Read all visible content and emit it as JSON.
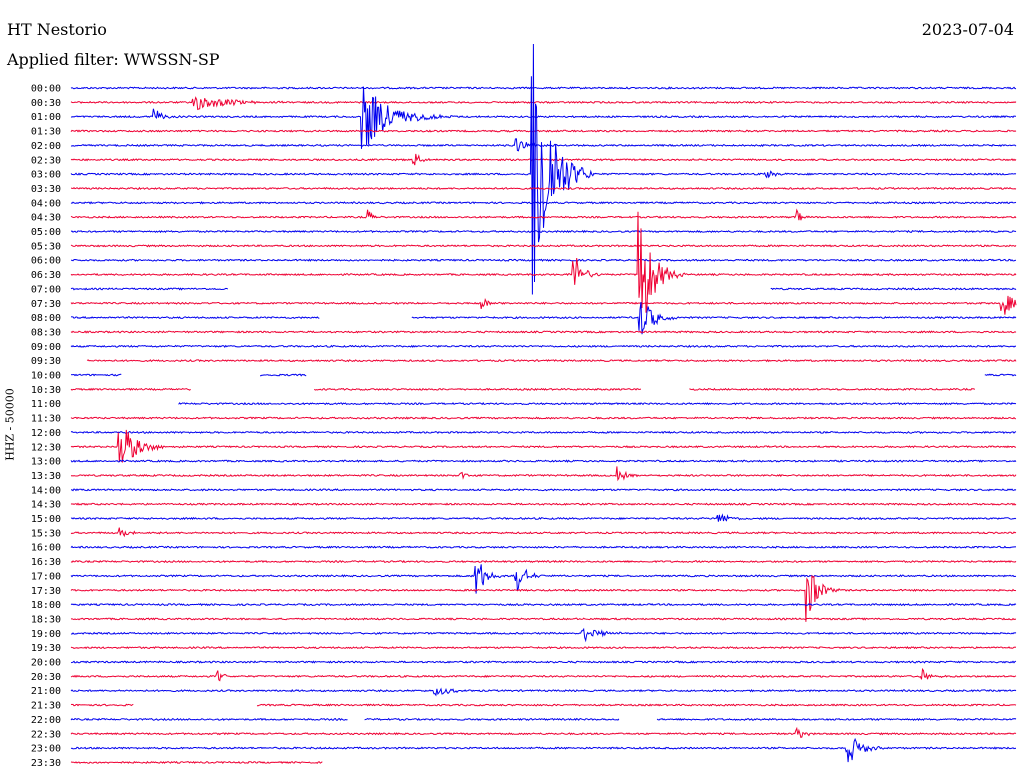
{
  "header": {
    "station": "HT Nestorio",
    "date": "2023-07-04",
    "filter": "Applied filter: WWSSN-SP"
  },
  "chart_data": {
    "type": "line",
    "title": "HT Nestorio",
    "subtitle": "Applied filter: WWSSN-SP",
    "date": "2023-07-04",
    "ylabel": "HHZ - 50000",
    "colors": [
      "#0000ee",
      "#ee0033"
    ],
    "trace_rows": [
      "00:00",
      "00:30",
      "01:00",
      "01:30",
      "02:00",
      "02:30",
      "03:00",
      "03:30",
      "04:00",
      "04:30",
      "05:00",
      "05:30",
      "06:00",
      "06:30",
      "07:00",
      "07:30",
      "08:00",
      "08:30",
      "09:00",
      "09:30",
      "10:00",
      "10:30",
      "11:00",
      "11:30",
      "12:00",
      "12:30",
      "13:00",
      "13:30",
      "14:00",
      "14:30",
      "15:00",
      "15:30",
      "16:00",
      "16:30",
      "17:00",
      "17:30",
      "18:00",
      "18:30",
      "19:00",
      "19:30",
      "20:00",
      "20:30",
      "21:00",
      "21:30",
      "22:00",
      "22:30",
      "23:00",
      "23:30"
    ],
    "row_minutes": 30,
    "events": [
      {
        "row": 1,
        "minute": 3.8,
        "amp": 0.25,
        "dur": 3.5
      },
      {
        "row": 2,
        "minute": 9.2,
        "amp": 1.0,
        "dur": 3.0
      },
      {
        "row": 2,
        "minute": 2.6,
        "amp": 0.25,
        "dur": 1.0
      },
      {
        "row": 5,
        "minute": 10.8,
        "amp": 0.3,
        "dur": 0.8
      },
      {
        "row": 4,
        "minute": 14.1,
        "amp": 0.2,
        "dur": 1.5
      },
      {
        "row": 6,
        "minute": 14.6,
        "amp": 4.5,
        "dur": 2.0
      },
      {
        "row": 6,
        "minute": 22.0,
        "amp": 0.15,
        "dur": 1.0
      },
      {
        "row": 9,
        "minute": 9.4,
        "amp": 0.3,
        "dur": 0.5
      },
      {
        "row": 9,
        "minute": 23.0,
        "amp": 0.3,
        "dur": 0.5
      },
      {
        "row": 13,
        "minute": 15.9,
        "amp": 0.8,
        "dur": 1.0
      },
      {
        "row": 13,
        "minute": 18.0,
        "amp": 2.0,
        "dur": 1.5
      },
      {
        "row": 15,
        "minute": 13.0,
        "amp": 0.2,
        "dur": 0.8
      },
      {
        "row": 15,
        "minute": 29.5,
        "amp": 0.6,
        "dur": 1.0
      },
      {
        "row": 16,
        "minute": 18.0,
        "amp": 0.7,
        "dur": 1.5
      },
      {
        "row": 25,
        "minute": 1.5,
        "amp": 0.7,
        "dur": 2.0
      },
      {
        "row": 27,
        "minute": 12.3,
        "amp": 0.25,
        "dur": 0.5
      },
      {
        "row": 27,
        "minute": 17.3,
        "amp": 0.25,
        "dur": 1.0
      },
      {
        "row": 31,
        "minute": 1.5,
        "amp": 0.15,
        "dur": 1.5
      },
      {
        "row": 30,
        "minute": 20.5,
        "amp": 0.2,
        "dur": 1.2
      },
      {
        "row": 34,
        "minute": 12.8,
        "amp": 0.8,
        "dur": 1.0
      },
      {
        "row": 34,
        "minute": 14.1,
        "amp": 0.6,
        "dur": 1.0
      },
      {
        "row": 35,
        "minute": 23.3,
        "amp": 1.0,
        "dur": 1.2
      },
      {
        "row": 38,
        "minute": 16.2,
        "amp": 0.3,
        "dur": 1.5
      },
      {
        "row": 41,
        "minute": 4.6,
        "amp": 0.3,
        "dur": 0.6
      },
      {
        "row": 41,
        "minute": 27.0,
        "amp": 0.2,
        "dur": 0.8
      },
      {
        "row": 42,
        "minute": 11.5,
        "amp": 0.2,
        "dur": 1.5
      },
      {
        "row": 45,
        "minute": 23.0,
        "amp": 0.2,
        "dur": 0.8
      },
      {
        "row": 46,
        "minute": 24.6,
        "amp": 0.5,
        "dur": 1.5
      }
    ],
    "gaps": [
      {
        "row": 16,
        "from": 7.9,
        "to": 10.8
      },
      {
        "row": 19,
        "from": 0,
        "to": 0.5
      },
      {
        "row": 20,
        "from": 1.6,
        "to": 6.0
      },
      {
        "row": 20,
        "from": 7.5,
        "to": 29.0
      },
      {
        "row": 21,
        "from": 3.8,
        "to": 7.7
      },
      {
        "row": 21,
        "from": 18.1,
        "to": 19.6
      },
      {
        "row": 21,
        "from": 28.7,
        "to": 30
      },
      {
        "row": 22,
        "from": 0,
        "to": 3.4
      },
      {
        "row": 14,
        "from": 5.0,
        "to": 22.2
      },
      {
        "row": 44,
        "from": 8.8,
        "to": 9.3
      },
      {
        "row": 44,
        "from": 17.4,
        "to": 18.6
      },
      {
        "row": 43,
        "from": 2.0,
        "to": 5.9
      },
      {
        "row": 47,
        "from": 8.0,
        "to": 30
      }
    ]
  }
}
